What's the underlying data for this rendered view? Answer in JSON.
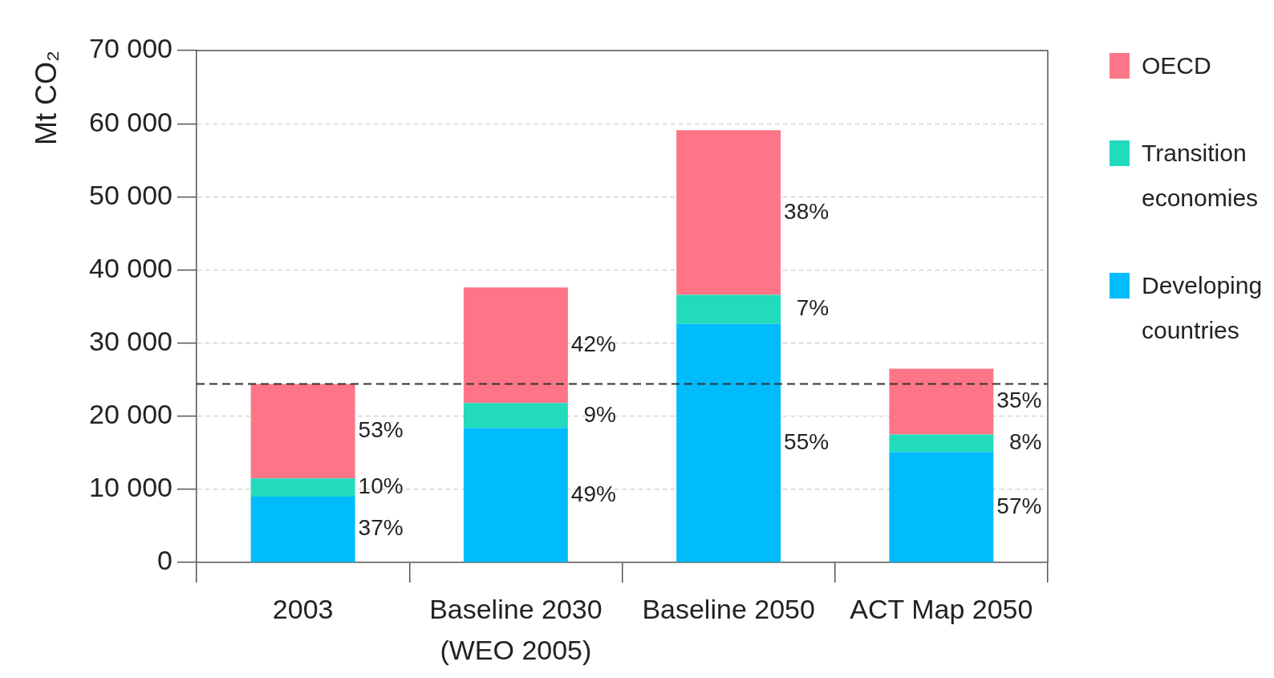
{
  "chart_data": {
    "type": "bar",
    "ylabel": "Mt CO₂",
    "categories": [
      "2003",
      "Baseline 2030 (WEO 2005)",
      "Baseline 2050",
      "ACT Map 2050"
    ],
    "series": [
      {
        "name": "Developing countries",
        "color": "#00bcfd",
        "values": [
          9000,
          18400,
          32600,
          15100
        ]
      },
      {
        "name": "Transition economies",
        "color": "#21dbbb",
        "values": [
          2500,
          3400,
          4000,
          2400
        ]
      },
      {
        "name": "OECD",
        "color": "#fe7587",
        "values": [
          12900,
          15800,
          22500,
          9000
        ]
      }
    ],
    "stacked": true,
    "ylim": [
      0,
      70000
    ],
    "yticks": [
      0,
      {
        "value": 10000,
        "label": "10 000"
      },
      {
        "value": 20000,
        "label": "20 000"
      },
      {
        "value": 30000,
        "label": "30 000"
      },
      {
        "value": 40000,
        "label": "40 000"
      },
      {
        "value": 50000,
        "label": "50 000"
      },
      {
        "value": 60000,
        "label": "60 000"
      },
      {
        "value": 70000,
        "label": "70 000"
      }
    ],
    "grid": "y",
    "legend": "top right",
    "ref_lines": [
      {
        "axis": "y",
        "value": 24400,
        "line_style": "dashed",
        "color": "#333333"
      }
    ],
    "annotations": [
      "53%",
      "10%",
      "37%",
      "42%",
      "9%",
      "49%",
      "38%",
      "7%",
      "55%",
      "35%",
      "8%",
      "57%"
    ]
  }
}
